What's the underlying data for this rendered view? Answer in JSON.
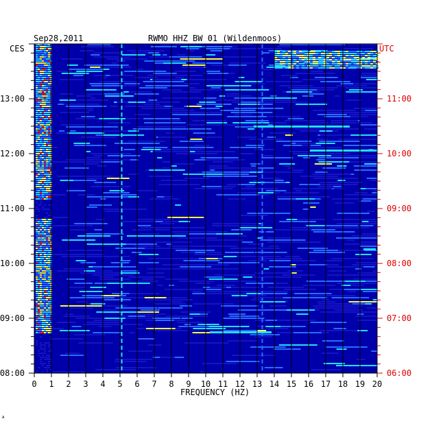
{
  "chart_data": {
    "type": "heatmap",
    "date": "Sep28,2011",
    "title": "RWMO HHZ BW 01 (Wildenmoos)",
    "xlabel": "FREQUENCY (HZ)",
    "xlim": [
      0,
      20
    ],
    "x_ticks": [
      "0",
      "1",
      "2",
      "3",
      "4",
      "5",
      "6",
      "7",
      "8",
      "9",
      "10",
      "11",
      "12",
      "13",
      "14",
      "15",
      "16",
      "17",
      "18",
      "19",
      "20"
    ],
    "left_axis": {
      "label": "CES",
      "ticks": [
        "13:00",
        "12:00",
        "11:00",
        "10:00",
        "09:00",
        "08:00"
      ]
    },
    "right_axis": {
      "label": "UTC",
      "color": "#dd0000",
      "ticks": [
        "11:00",
        "10:00",
        "09:00",
        "08:00",
        "07:00",
        "06:00"
      ]
    },
    "time_range_ces": [
      "08:00",
      "13:00+"
    ],
    "colors": {
      "background": "#0000aa",
      "low": "#1414c8",
      "mid": "#2a6cff",
      "high": "#22e0ff",
      "peak": "#ffff40",
      "max": "#ff2000",
      "grid": "#000000"
    },
    "persistent_lines_hz": [
      5.1,
      13.3
    ],
    "footer_mark": "ᴬ"
  }
}
